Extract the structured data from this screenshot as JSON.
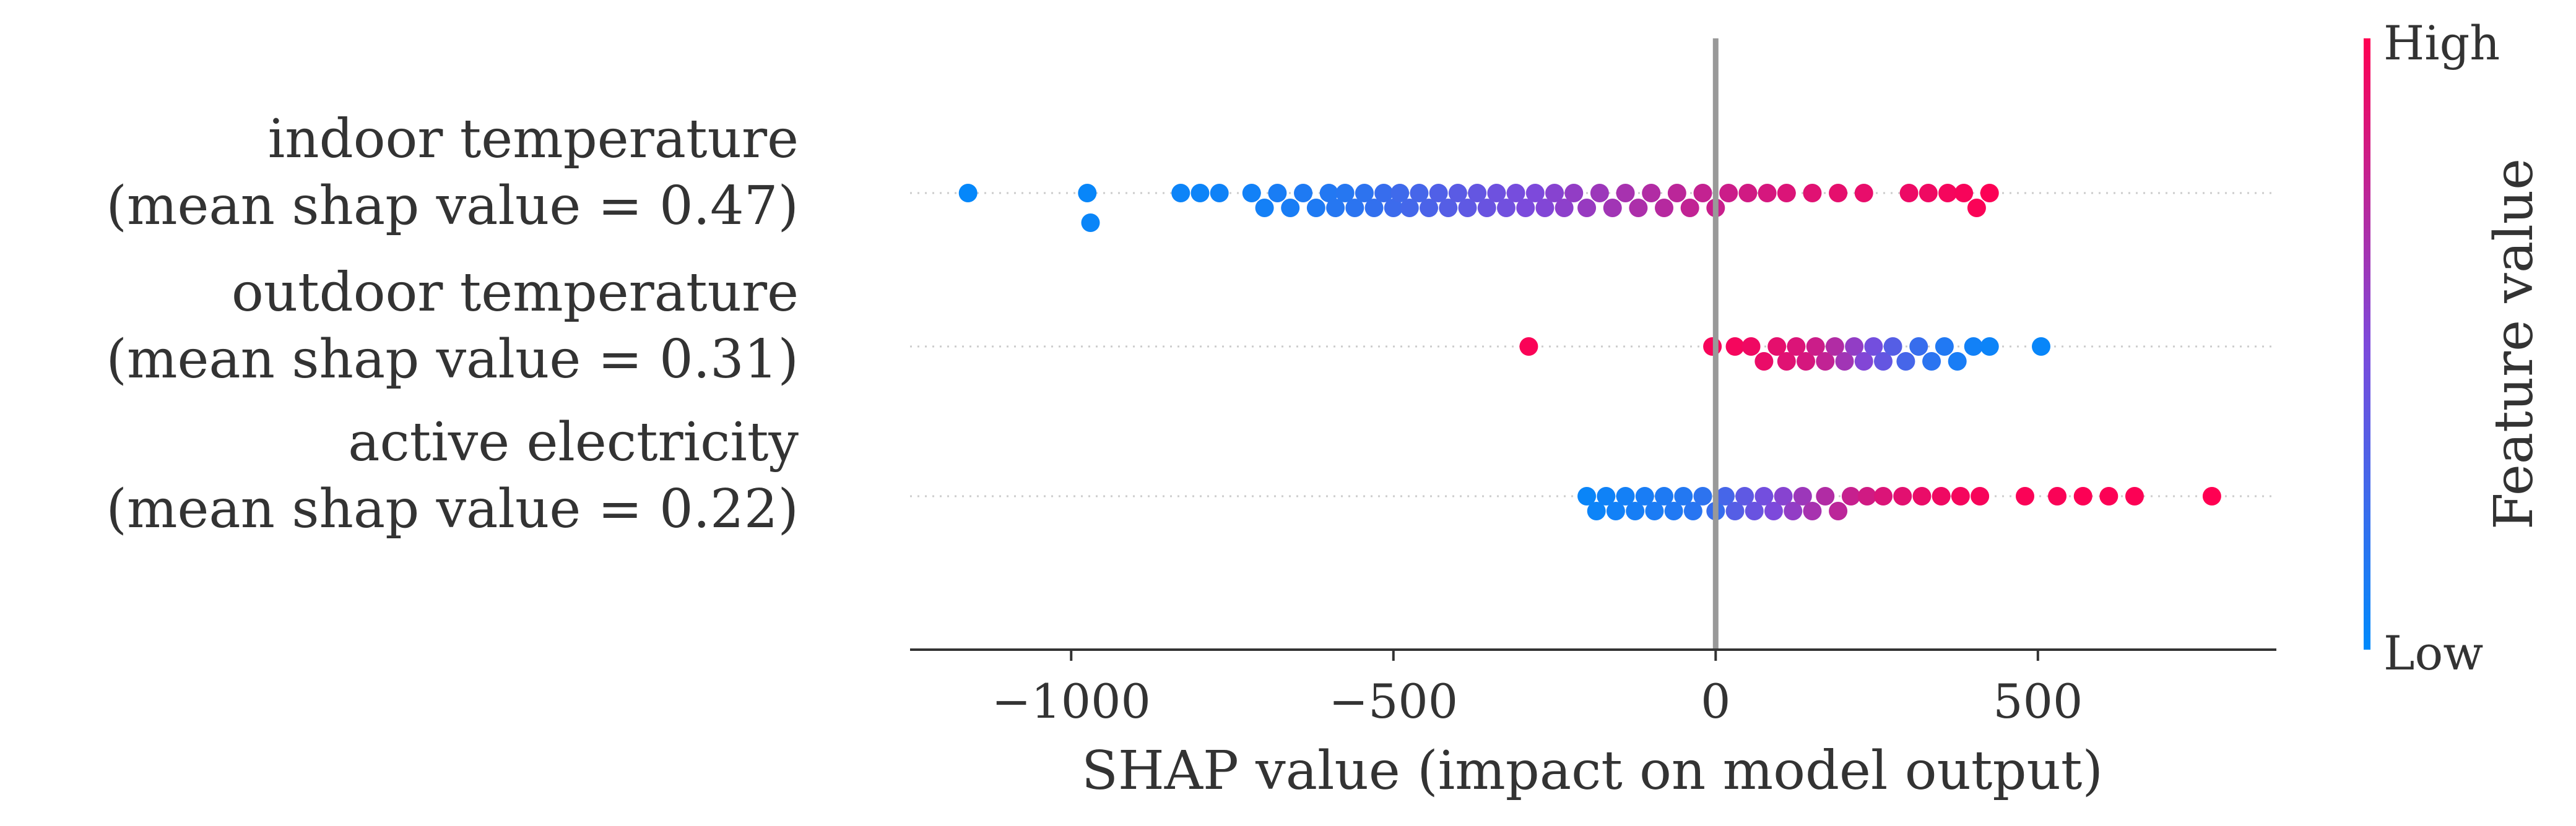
{
  "chart_data": {
    "type": "scatter",
    "subtype": "shap-beeswarm",
    "title": "",
    "xlabel": "SHAP value (impact on model output)",
    "ylabel": "",
    "xlim": [
      -1250,
      870
    ],
    "xticks": [
      -1000,
      -500,
      0,
      500
    ],
    "xtick_labels": [
      "−1000",
      "−500",
      "0",
      "500"
    ],
    "zero_line": 0,
    "grid": false,
    "legend": "colorbar-right",
    "colorbar": {
      "label": "Feature value",
      "high_label": "High",
      "low_label": "Low",
      "colors": {
        "low": "#008afb",
        "mid": "#7d49db",
        "high": "#ff0052"
      }
    },
    "features": [
      {
        "name": "indoor temperature",
        "subtitle": "(mean shap value = 0.47)",
        "points": [
          {
            "x": -1160,
            "f": 0.02
          },
          {
            "x": -975,
            "f": 0.03
          },
          {
            "x": -970,
            "f": 0.04
          },
          {
            "x": -830,
            "f": 0.05
          },
          {
            "x": -800,
            "f": 0.05
          },
          {
            "x": -770,
            "f": 0.06
          },
          {
            "x": -720,
            "f": 0.07
          },
          {
            "x": -700,
            "f": 0.08
          },
          {
            "x": -680,
            "f": 0.1
          },
          {
            "x": -660,
            "f": 0.1
          },
          {
            "x": -640,
            "f": 0.12
          },
          {
            "x": -620,
            "f": 0.12
          },
          {
            "x": -600,
            "f": 0.14
          },
          {
            "x": -590,
            "f": 0.15
          },
          {
            "x": -575,
            "f": 0.15
          },
          {
            "x": -560,
            "f": 0.17
          },
          {
            "x": -545,
            "f": 0.18
          },
          {
            "x": -530,
            "f": 0.2
          },
          {
            "x": -515,
            "f": 0.22
          },
          {
            "x": -500,
            "f": 0.24
          },
          {
            "x": -490,
            "f": 0.25
          },
          {
            "x": -475,
            "f": 0.27
          },
          {
            "x": -460,
            "f": 0.28
          },
          {
            "x": -445,
            "f": 0.3
          },
          {
            "x": -430,
            "f": 0.32
          },
          {
            "x": -415,
            "f": 0.34
          },
          {
            "x": -400,
            "f": 0.36
          },
          {
            "x": -385,
            "f": 0.38
          },
          {
            "x": -370,
            "f": 0.4
          },
          {
            "x": -355,
            "f": 0.42
          },
          {
            "x": -340,
            "f": 0.44
          },
          {
            "x": -325,
            "f": 0.45
          },
          {
            "x": -310,
            "f": 0.47
          },
          {
            "x": -295,
            "f": 0.49
          },
          {
            "x": -280,
            "f": 0.5
          },
          {
            "x": -265,
            "f": 0.52
          },
          {
            "x": -250,
            "f": 0.54
          },
          {
            "x": -235,
            "f": 0.56
          },
          {
            "x": -220,
            "f": 0.58
          },
          {
            "x": -200,
            "f": 0.6
          },
          {
            "x": -180,
            "f": 0.62
          },
          {
            "x": -160,
            "f": 0.64
          },
          {
            "x": -140,
            "f": 0.66
          },
          {
            "x": -120,
            "f": 0.68
          },
          {
            "x": -100,
            "f": 0.7
          },
          {
            "x": -80,
            "f": 0.72
          },
          {
            "x": -60,
            "f": 0.74
          },
          {
            "x": -40,
            "f": 0.76
          },
          {
            "x": -20,
            "f": 0.77
          },
          {
            "x": 0,
            "f": 0.79
          },
          {
            "x": 20,
            "f": 0.8
          },
          {
            "x": 50,
            "f": 0.82
          },
          {
            "x": 80,
            "f": 0.84
          },
          {
            "x": 110,
            "f": 0.86
          },
          {
            "x": 150,
            "f": 0.88
          },
          {
            "x": 190,
            "f": 0.9
          },
          {
            "x": 230,
            "f": 0.91
          },
          {
            "x": 300,
            "f": 0.93
          },
          {
            "x": 330,
            "f": 0.94
          },
          {
            "x": 360,
            "f": 0.96
          },
          {
            "x": 385,
            "f": 0.97
          },
          {
            "x": 405,
            "f": 0.98
          },
          {
            "x": 425,
            "f": 0.99
          }
        ]
      },
      {
        "name": "outdoor temperature",
        "subtitle": "(mean shap value = 0.31)",
        "points": [
          {
            "x": -290,
            "f": 0.98
          },
          {
            "x": -5,
            "f": 0.97
          },
          {
            "x": 30,
            "f": 0.96
          },
          {
            "x": 55,
            "f": 0.94
          },
          {
            "x": 75,
            "f": 0.92
          },
          {
            "x": 95,
            "f": 0.9
          },
          {
            "x": 110,
            "f": 0.88
          },
          {
            "x": 125,
            "f": 0.86
          },
          {
            "x": 140,
            "f": 0.84
          },
          {
            "x": 155,
            "f": 0.8
          },
          {
            "x": 170,
            "f": 0.76
          },
          {
            "x": 185,
            "f": 0.7
          },
          {
            "x": 200,
            "f": 0.64
          },
          {
            "x": 215,
            "f": 0.58
          },
          {
            "x": 230,
            "f": 0.52
          },
          {
            "x": 245,
            "f": 0.46
          },
          {
            "x": 260,
            "f": 0.4
          },
          {
            "x": 275,
            "f": 0.34
          },
          {
            "x": 295,
            "f": 0.28
          },
          {
            "x": 315,
            "f": 0.22
          },
          {
            "x": 335,
            "f": 0.17
          },
          {
            "x": 355,
            "f": 0.13
          },
          {
            "x": 375,
            "f": 0.1
          },
          {
            "x": 400,
            "f": 0.07
          },
          {
            "x": 425,
            "f": 0.05
          },
          {
            "x": 505,
            "f": 0.03
          }
        ]
      },
      {
        "name": "active electricity",
        "subtitle": "(mean shap value = 0.22)",
        "points": [
          {
            "x": -200,
            "f": 0.04
          },
          {
            "x": -185,
            "f": 0.05
          },
          {
            "x": -170,
            "f": 0.06
          },
          {
            "x": -155,
            "f": 0.07
          },
          {
            "x": -140,
            "f": 0.08
          },
          {
            "x": -125,
            "f": 0.09
          },
          {
            "x": -110,
            "f": 0.1
          },
          {
            "x": -95,
            "f": 0.11
          },
          {
            "x": -80,
            "f": 0.12
          },
          {
            "x": -65,
            "f": 0.13
          },
          {
            "x": -50,
            "f": 0.14
          },
          {
            "x": -35,
            "f": 0.16
          },
          {
            "x": -20,
            "f": 0.18
          },
          {
            "x": 0,
            "f": 0.22
          },
          {
            "x": 15,
            "f": 0.28
          },
          {
            "x": 30,
            "f": 0.34
          },
          {
            "x": 45,
            "f": 0.38
          },
          {
            "x": 60,
            "f": 0.42
          },
          {
            "x": 75,
            "f": 0.46
          },
          {
            "x": 90,
            "f": 0.5
          },
          {
            "x": 105,
            "f": 0.54
          },
          {
            "x": 120,
            "f": 0.58
          },
          {
            "x": 135,
            "f": 0.62
          },
          {
            "x": 150,
            "f": 0.66
          },
          {
            "x": 170,
            "f": 0.7
          },
          {
            "x": 190,
            "f": 0.74
          },
          {
            "x": 210,
            "f": 0.78
          },
          {
            "x": 235,
            "f": 0.82
          },
          {
            "x": 260,
            "f": 0.86
          },
          {
            "x": 290,
            "f": 0.89
          },
          {
            "x": 320,
            "f": 0.92
          },
          {
            "x": 350,
            "f": 0.94
          },
          {
            "x": 380,
            "f": 0.96
          },
          {
            "x": 410,
            "f": 0.97
          },
          {
            "x": 480,
            "f": 0.98
          },
          {
            "x": 530,
            "f": 0.98
          },
          {
            "x": 570,
            "f": 0.99
          },
          {
            "x": 610,
            "f": 0.99
          },
          {
            "x": 650,
            "f": 0.99
          },
          {
            "x": 770,
            "f": 1.0
          }
        ]
      }
    ]
  }
}
